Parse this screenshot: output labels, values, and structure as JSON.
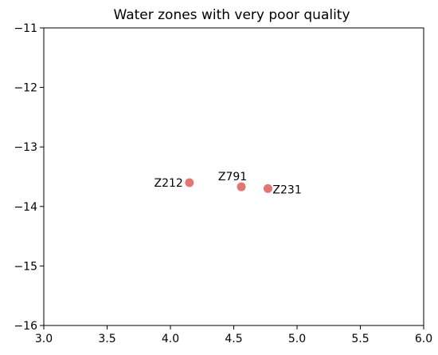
{
  "chart_data": {
    "type": "scatter",
    "title": "Water zones with very poor quality",
    "xlabel": "",
    "ylabel": "",
    "xlim": [
      3.0,
      6.0
    ],
    "ylim": [
      -16,
      -11
    ],
    "xticks": [
      3.0,
      3.5,
      4.0,
      4.5,
      5.0,
      5.5,
      6.0
    ],
    "xtick_labels": [
      "3.0",
      "3.5",
      "4.0",
      "4.5",
      "5.0",
      "5.5",
      "6.0"
    ],
    "yticks": [
      -11,
      -12,
      -13,
      -14,
      -15,
      -16
    ],
    "ytick_labels": [
      "−11",
      "−12",
      "−13",
      "−14",
      "−15",
      "−16"
    ],
    "grid": false,
    "point_color": "#e06666",
    "points": [
      {
        "label": "Z212",
        "x": 4.15,
        "y": -13.6,
        "label_position": "left"
      },
      {
        "label": "Z791",
        "x": 4.56,
        "y": -13.67,
        "label_position": "above"
      },
      {
        "label": "Z231",
        "x": 4.77,
        "y": -13.7,
        "label_position": "right"
      }
    ]
  }
}
